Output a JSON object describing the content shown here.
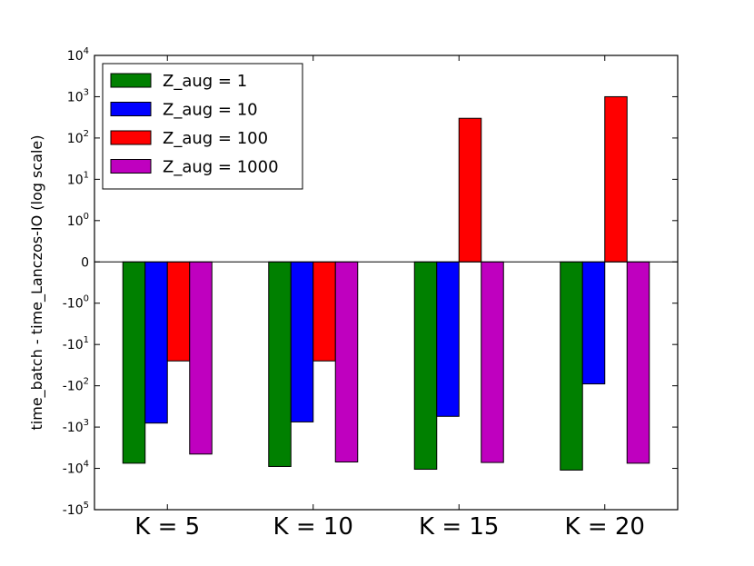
{
  "chart_data": {
    "type": "bar",
    "scale": "symlog",
    "linthresh": 1,
    "ylabel": "time_batch - time_Lanczos-IO (log scale)",
    "xlabel": "",
    "title": "",
    "ylim": [
      -100000,
      10000
    ],
    "yticks": [
      {
        "value": 10000,
        "base": "10",
        "exp": "4",
        "sign": ""
      },
      {
        "value": 1000,
        "base": "10",
        "exp": "3",
        "sign": ""
      },
      {
        "value": 100,
        "base": "10",
        "exp": "2",
        "sign": ""
      },
      {
        "value": 10,
        "base": "10",
        "exp": "1",
        "sign": ""
      },
      {
        "value": 1,
        "base": "10",
        "exp": "0",
        "sign": ""
      },
      {
        "value": 0,
        "base": "0",
        "exp": "",
        "sign": ""
      },
      {
        "value": -1,
        "base": "10",
        "exp": "0",
        "sign": "-"
      },
      {
        "value": -10,
        "base": "10",
        "exp": "1",
        "sign": "-"
      },
      {
        "value": -100,
        "base": "10",
        "exp": "2",
        "sign": "-"
      },
      {
        "value": -1000,
        "base": "10",
        "exp": "3",
        "sign": "-"
      },
      {
        "value": -10000,
        "base": "10",
        "exp": "4",
        "sign": "-"
      },
      {
        "value": -100000,
        "base": "10",
        "exp": "5",
        "sign": "-"
      }
    ],
    "categories": [
      "K = 5",
      "K = 10",
      "K = 15",
      "K = 20"
    ],
    "series": [
      {
        "name": "Z_aug = 1",
        "color": "#008000",
        "values": [
          -7500,
          -9000,
          -10500,
          -11000
        ]
      },
      {
        "name": "Z_aug = 10",
        "color": "#0000ff",
        "values": [
          -800,
          -750,
          -550,
          -90
        ]
      },
      {
        "name": "Z_aug = 100",
        "color": "#ff0000",
        "values": [
          -25,
          -25,
          300,
          1000
        ]
      },
      {
        "name": "Z_aug = 1000",
        "color": "#bf00bf",
        "values": [
          -4500,
          -7000,
          -7200,
          -7500
        ]
      }
    ],
    "legend": "top-left",
    "grid": false
  }
}
